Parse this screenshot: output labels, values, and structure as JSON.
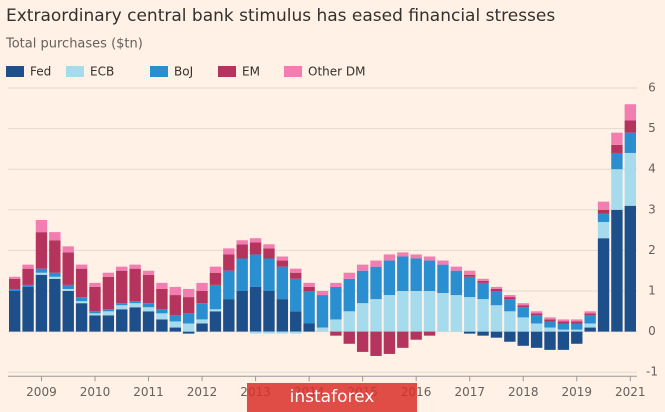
{
  "chart_data": {
    "type": "stacked-bar",
    "title": "Extraordinary central bank stimulus has eased financial stresses",
    "subtitle": "Total purchases ($tn)",
    "watermark": "instaforex",
    "categories": [
      null,
      null,
      "2009",
      null,
      null,
      null,
      "2010",
      null,
      null,
      null,
      "2011",
      null,
      null,
      null,
      "2012",
      null,
      null,
      null,
      "2013",
      null,
      null,
      null,
      "2014",
      null,
      null,
      null,
      "2015",
      null,
      null,
      null,
      "2016",
      null,
      null,
      null,
      "2017",
      null,
      null,
      null,
      "2018",
      null,
      null,
      null,
      "2019",
      null,
      null,
      null,
      "2021"
    ],
    "series": [
      {
        "name": "Fed",
        "color": "#1d4f8a",
        "values": [
          1.0,
          1.1,
          1.4,
          1.3,
          1.0,
          0.7,
          0.4,
          0.4,
          0.55,
          0.6,
          0.5,
          0.3,
          0.1,
          -0.05,
          0.2,
          0.5,
          0.8,
          1.0,
          1.1,
          1.0,
          0.8,
          0.5,
          0.2,
          0,
          0,
          0,
          0,
          0,
          0,
          0,
          0,
          0,
          0,
          0,
          -0.05,
          -0.1,
          -0.15,
          -0.25,
          -0.35,
          -0.4,
          -0.45,
          -0.45,
          -0.3,
          0.1,
          2.3,
          3.0,
          3.1
        ]
      },
      {
        "name": "ECB",
        "color": "#a6dbee",
        "values": [
          0,
          0,
          0.05,
          0.05,
          0.05,
          0.05,
          0.05,
          0.1,
          0.1,
          0.1,
          0.1,
          0.15,
          0.15,
          0.2,
          0.1,
          0.05,
          0,
          0,
          -0.05,
          -0.05,
          -0.05,
          -0.05,
          0,
          0.1,
          0.3,
          0.5,
          0.7,
          0.8,
          0.9,
          1.0,
          1.0,
          1.0,
          0.95,
          0.9,
          0.85,
          0.8,
          0.65,
          0.5,
          0.35,
          0.2,
          0.1,
          0.05,
          0.05,
          0.1,
          0.4,
          1.0,
          1.3
        ]
      },
      {
        "name": "BoJ",
        "color": "#2a8fd0",
        "values": [
          0.05,
          0.05,
          0.1,
          0.1,
          0.1,
          0.1,
          0.05,
          0.05,
          0.05,
          0.05,
          0.1,
          0.1,
          0.15,
          0.25,
          0.4,
          0.6,
          0.7,
          0.8,
          0.8,
          0.8,
          0.8,
          0.8,
          0.8,
          0.8,
          0.8,
          0.8,
          0.8,
          0.8,
          0.85,
          0.85,
          0.8,
          0.75,
          0.7,
          0.6,
          0.5,
          0.4,
          0.35,
          0.3,
          0.25,
          0.2,
          0.15,
          0.15,
          0.15,
          0.2,
          0.2,
          0.4,
          0.5
        ]
      },
      {
        "name": "EM",
        "color": "#b4345e",
        "values": [
          0.25,
          0.4,
          0.9,
          0.8,
          0.8,
          0.7,
          0.6,
          0.8,
          0.8,
          0.8,
          0.7,
          0.5,
          0.5,
          0.4,
          0.3,
          0.3,
          0.4,
          0.35,
          0.3,
          0.25,
          0.15,
          0.15,
          0.1,
          0,
          -0.1,
          -0.3,
          -0.5,
          -0.6,
          -0.55,
          -0.4,
          -0.2,
          -0.1,
          0,
          0,
          0.05,
          0.05,
          0.05,
          0.05,
          0.05,
          0.05,
          0.05,
          0.05,
          0.05,
          0.05,
          0.1,
          0.2,
          0.3
        ]
      },
      {
        "name": "Other DM",
        "color": "#f27db0",
        "values": [
          0.05,
          0.1,
          0.3,
          0.2,
          0.15,
          0.1,
          0.1,
          0.1,
          0.1,
          0.1,
          0.1,
          0.15,
          0.2,
          0.2,
          0.2,
          0.15,
          0.15,
          0.1,
          0.1,
          0.1,
          0.1,
          0.1,
          0.1,
          0.1,
          0.1,
          0.15,
          0.15,
          0.15,
          0.15,
          0.1,
          0.1,
          0.1,
          0.1,
          0.1,
          0.1,
          0.05,
          0.05,
          0.05,
          0.05,
          0.05,
          0.05,
          0.05,
          0.05,
          0.05,
          0.2,
          0.3,
          0.4
        ]
      }
    ],
    "ylim": [
      -1.1,
      6.1
    ],
    "yticks": [
      -1,
      0,
      1,
      2,
      3,
      4,
      5,
      6
    ],
    "grid": true
  }
}
